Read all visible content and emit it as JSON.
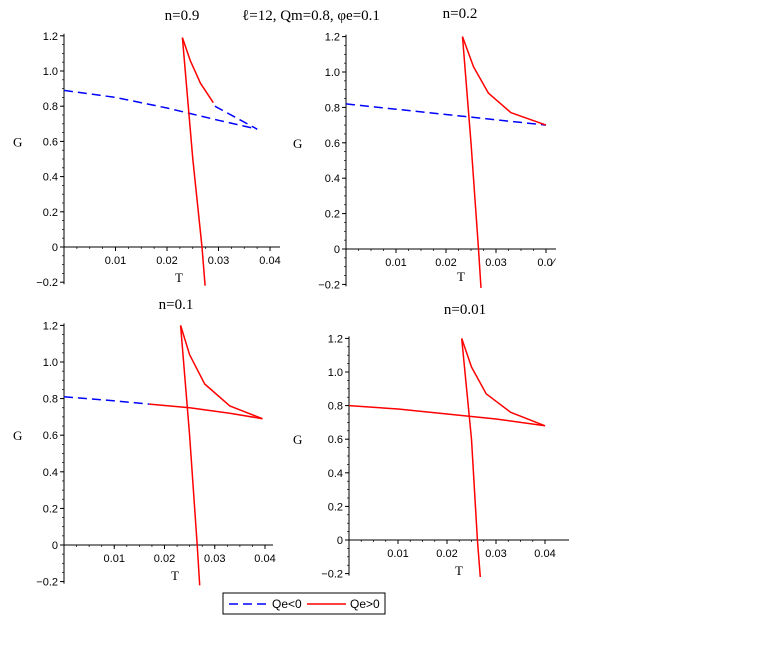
{
  "figure_title": "ℓ=12, Qm=0.8, φe=0.1",
  "legend": {
    "placement": "bottom-center",
    "entries": [
      {
        "label": "Qe<0",
        "color": "#0000ff",
        "style": "dashed"
      },
      {
        "label": "Qe>0",
        "color": "#ff0000",
        "style": "solid"
      }
    ]
  },
  "chart_data": [
    {
      "type": "line",
      "title": "n=0.9",
      "xlabel": "T",
      "ylabel": "G",
      "xlim": [
        0,
        0.04
      ],
      "ylim": [
        -0.2,
        1.2
      ],
      "xticks": [
        0.01,
        0.02,
        0.03,
        0.04
      ],
      "yticks": [
        -0.2,
        0,
        0.2,
        0.4,
        0.6,
        0.8,
        1.0,
        1.2
      ],
      "ytick_labels": [
        "−0.2",
        "0",
        "0.2",
        "0.4",
        "0.6",
        "0.8",
        "1.0",
        "1.2"
      ],
      "series": [
        {
          "legend": "Qe<0",
          "points": [
            [
              0,
              0.89
            ],
            [
              0.01,
              0.85
            ],
            [
              0.02,
              0.79
            ],
            [
              0.03,
              0.72
            ],
            [
              0.0375,
              0.67
            ]
          ]
        },
        {
          "legend": "Qe<0",
          "points": [
            [
              0.0293,
              0.8
            ],
            [
              0.0375,
              0.67
            ]
          ]
        },
        {
          "legend": "Qe>0",
          "points": [
            [
              0.023,
              1.19
            ],
            [
              0.0245,
              1.06
            ],
            [
              0.0265,
              0.93
            ],
            [
              0.029,
              0.82
            ]
          ]
        },
        {
          "legend": "Qe>0",
          "points": [
            [
              0.023,
              1.19
            ],
            [
              0.025,
              0.5
            ],
            [
              0.0268,
              0.0
            ],
            [
              0.0274,
              -0.22
            ]
          ]
        }
      ]
    },
    {
      "type": "line",
      "title": "n=0.2",
      "xlabel": "T",
      "ylabel": "G",
      "xlim": [
        0,
        0.04
      ],
      "ylim": [
        -0.2,
        1.2
      ],
      "xticks": [
        0.01,
        0.02,
        0.03,
        0.04
      ],
      "xtick_labels": [
        "0.01",
        "0.02",
        "0.03",
        "0.0⁄"
      ],
      "yticks": [
        -0.2,
        0,
        0.2,
        0.4,
        0.6,
        0.8,
        1.0,
        1.2
      ],
      "ytick_labels": [
        "−0.2",
        "0",
        "0.2",
        "0.4",
        "0.6",
        "0.8",
        "1.0",
        "1.2"
      ],
      "series": [
        {
          "legend": "Qe<0",
          "points": [
            [
              0,
              0.82
            ],
            [
              0.01,
              0.79
            ],
            [
              0.02,
              0.76
            ],
            [
              0.03,
              0.73
            ],
            [
              0.04,
              0.7
            ]
          ]
        },
        {
          "legend": "Qe>0",
          "points": [
            [
              0.0233,
              1.2
            ],
            [
              0.0255,
              1.03
            ],
            [
              0.0285,
              0.88
            ],
            [
              0.033,
              0.77
            ],
            [
              0.04,
              0.7
            ]
          ]
        },
        {
          "legend": "Qe>0",
          "points": [
            [
              0.0233,
              1.2
            ],
            [
              0.025,
              0.6
            ],
            [
              0.0265,
              0.0
            ],
            [
              0.027,
              -0.22
            ]
          ]
        }
      ]
    },
    {
      "type": "line",
      "title": "n=0.1",
      "xlabel": "T",
      "ylabel": "G",
      "xlim": [
        0,
        0.04
      ],
      "ylim": [
        -0.2,
        1.2
      ],
      "xticks": [
        0.01,
        0.02,
        0.03,
        0.04
      ],
      "yticks": [
        -0.2,
        0,
        0.2,
        0.4,
        0.6,
        0.8,
        1.0,
        1.2
      ],
      "ytick_labels": [
        "−0.2",
        "0",
        "0.2",
        "0.4",
        "0.6",
        "0.8",
        "1.0",
        "1.2"
      ],
      "series": [
        {
          "legend": "Qe<0",
          "points": [
            [
              0,
              0.81
            ],
            [
              0.009,
              0.79
            ],
            [
              0.017,
              0.77
            ]
          ]
        },
        {
          "legend": "Qe>0",
          "points": [
            [
              0.017,
              0.77
            ],
            [
              0.025,
              0.75
            ],
            [
              0.033,
              0.72
            ],
            [
              0.0395,
              0.69
            ]
          ]
        },
        {
          "legend": "Qe>0",
          "points": [
            [
              0.0232,
              1.2
            ],
            [
              0.025,
              1.04
            ],
            [
              0.028,
              0.88
            ],
            [
              0.033,
              0.76
            ],
            [
              0.0395,
              0.69
            ]
          ]
        },
        {
          "legend": "Qe>0",
          "points": [
            [
              0.0232,
              1.2
            ],
            [
              0.025,
              0.6
            ],
            [
              0.0265,
              0.0
            ],
            [
              0.027,
              -0.22
            ]
          ]
        }
      ]
    },
    {
      "type": "line",
      "title": "n=0.01",
      "xlabel": "T",
      "ylabel": "G",
      "xlim": [
        0,
        0.04
      ],
      "ylim": [
        -0.2,
        1.2
      ],
      "xticks": [
        0.01,
        0.02,
        0.03,
        0.04
      ],
      "yticks": [
        -0.2,
        0,
        0.2,
        0.4,
        0.6,
        0.8,
        1.0,
        1.2
      ],
      "ytick_labels": [
        "−0.2",
        "0",
        "0.2",
        "0.4",
        "0.6",
        "0.8",
        "1.0",
        "1.2"
      ],
      "series": [
        {
          "legend": "Qe>0",
          "points": [
            [
              0,
              0.8
            ],
            [
              0.01,
              0.78
            ],
            [
              0.02,
              0.75
            ],
            [
              0.03,
              0.72
            ],
            [
              0.04,
              0.68
            ]
          ]
        },
        {
          "legend": "Qe>0",
          "points": [
            [
              0.023,
              1.2
            ],
            [
              0.025,
              1.03
            ],
            [
              0.028,
              0.87
            ],
            [
              0.033,
              0.76
            ],
            [
              0.04,
              0.68
            ]
          ]
        },
        {
          "legend": "Qe>0",
          "points": [
            [
              0.023,
              1.2
            ],
            [
              0.025,
              0.6
            ],
            [
              0.0262,
              0.0
            ],
            [
              0.0268,
              -0.22
            ]
          ]
        }
      ]
    }
  ]
}
